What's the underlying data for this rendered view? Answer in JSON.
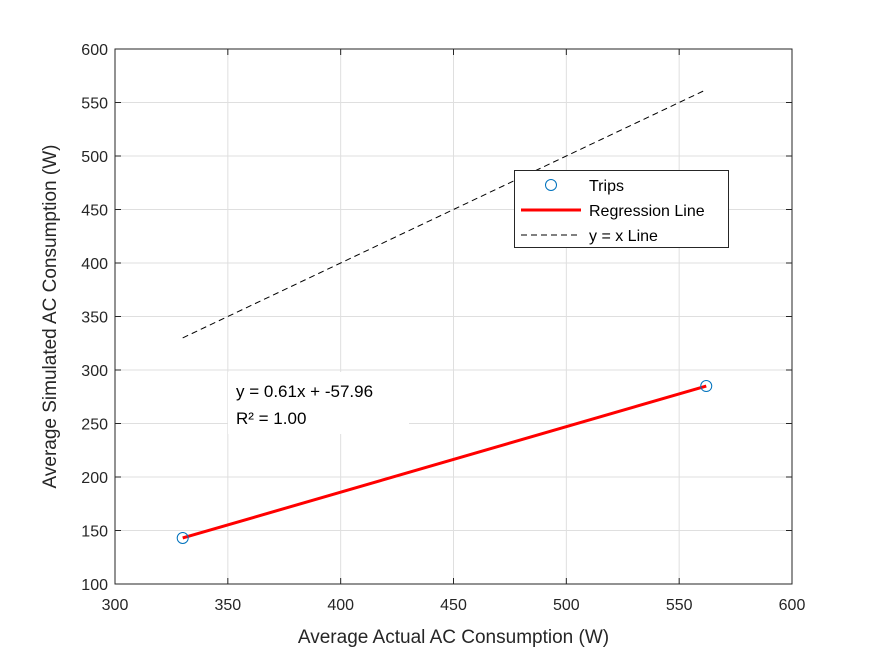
{
  "chart_data": {
    "type": "scatter",
    "xlabel": "Average Actual AC Consumption (W)",
    "ylabel": "Average Simulated AC Consumption (W)",
    "xlim": [
      300,
      600
    ],
    "ylim": [
      100,
      600
    ],
    "xticks": [
      300,
      350,
      400,
      450,
      500,
      550,
      600
    ],
    "yticks": [
      100,
      150,
      200,
      250,
      300,
      350,
      400,
      450,
      500,
      550,
      600
    ],
    "grid": true,
    "legend_position": "upper-right",
    "series": [
      {
        "name": "Trips",
        "kind": "scatter",
        "marker": "circle-open",
        "color": "#0072BD",
        "x": [
          330,
          562
        ],
        "y": [
          143,
          285
        ]
      },
      {
        "name": "Regression Line",
        "kind": "line",
        "style": "solid",
        "color": "#FF0000",
        "x": [
          330,
          562
        ],
        "y": [
          143,
          285
        ]
      },
      {
        "name": "y = x Line",
        "kind": "line",
        "style": "dashed",
        "color": "#000000",
        "x": [
          330,
          562
        ],
        "y": [
          330,
          562
        ]
      }
    ],
    "annotations": [
      {
        "text": "y = 0.61x + -57.96"
      },
      {
        "text": "R² = 1.00"
      }
    ]
  }
}
